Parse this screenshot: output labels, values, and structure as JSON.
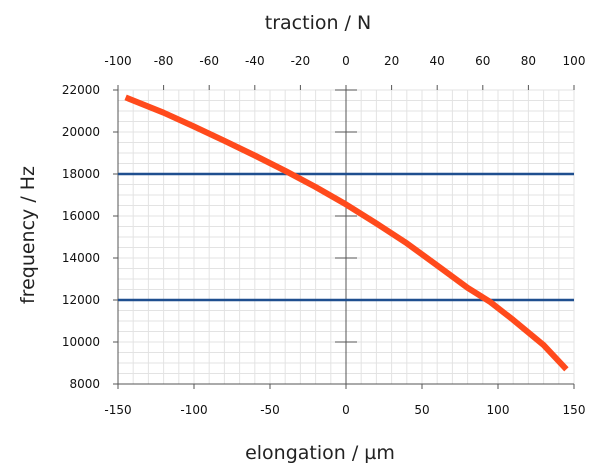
{
  "chart_data": {
    "type": "line",
    "xlabel": "elongation / µm",
    "x2label": "traction / N",
    "ylabel": "frequency / Hz",
    "xlim": [
      -150,
      150
    ],
    "x2lim": [
      -100,
      100
    ],
    "ylim": [
      8000,
      22000
    ],
    "x_ticks": [
      -150,
      -100,
      -50,
      0,
      50,
      100,
      150
    ],
    "x2_ticks": [
      -100,
      -80,
      -60,
      -40,
      -20,
      0,
      20,
      40,
      60,
      80,
      100
    ],
    "y_ticks": [
      8000,
      10000,
      12000,
      14000,
      16000,
      18000,
      20000,
      22000
    ],
    "grid": true,
    "colors": {
      "curve": "#ff4a1c",
      "limits": "#1f4f8f",
      "grid": "#e3e3e3",
      "axis": "#555555"
    },
    "series": [
      {
        "x": [
          -145,
          -120,
          -100,
          -80,
          -60,
          -40,
          -20,
          0,
          20,
          40,
          60,
          80,
          95,
          110,
          130,
          145
        ],
        "y": [
          21650,
          20920,
          20260,
          19580,
          18880,
          18150,
          17380,
          16550,
          15650,
          14700,
          13650,
          12580,
          11900,
          11050,
          9850,
          8700
        ]
      }
    ],
    "reference_lines": [
      {
        "axis": "y",
        "value": 18000
      },
      {
        "axis": "y",
        "value": 12000
      }
    ]
  }
}
